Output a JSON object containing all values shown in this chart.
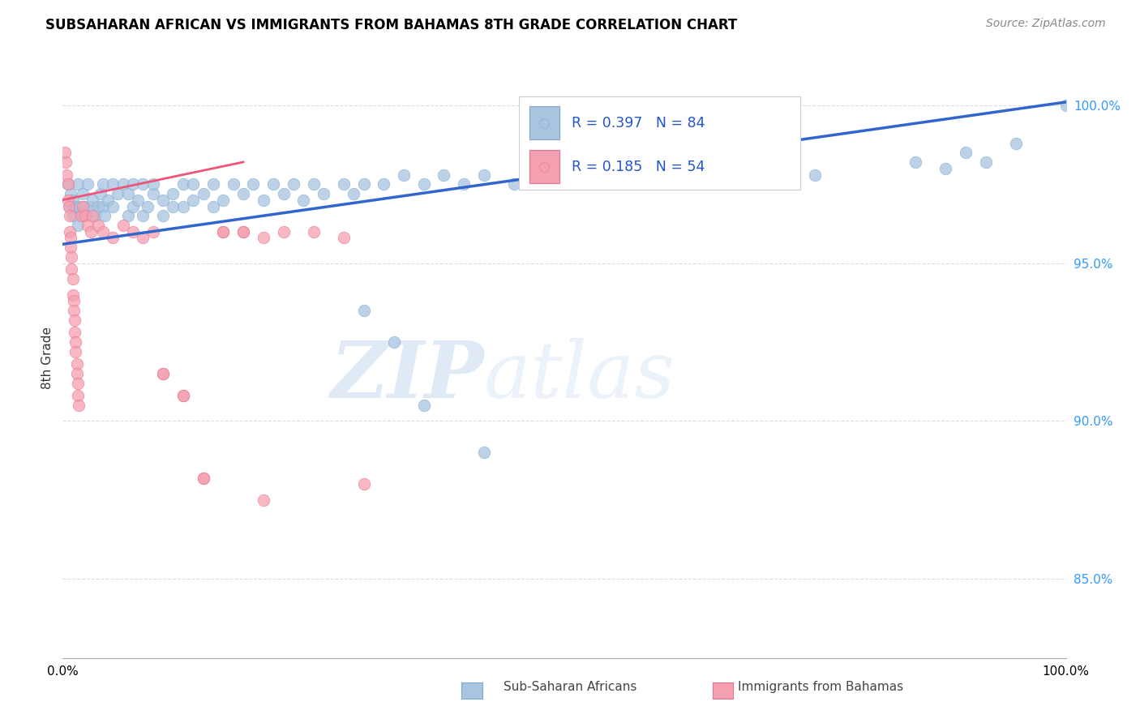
{
  "title": "SUBSAHARAN AFRICAN VS IMMIGRANTS FROM BAHAMAS 8TH GRADE CORRELATION CHART",
  "source": "Source: ZipAtlas.com",
  "ylabel": "8th Grade",
  "watermark_zip": "ZIP",
  "watermark_atlas": "atlas",
  "blue_R": 0.397,
  "blue_N": 84,
  "pink_R": 0.185,
  "pink_N": 54,
  "blue_color": "#a8c4e0",
  "blue_edge": "#7aaad0",
  "pink_color": "#f5a0b0",
  "pink_edge": "#e87090",
  "trend_blue": "#3366cc",
  "trend_pink": "#ee5577",
  "legend_label_blue": "Sub-Saharan Africans",
  "legend_label_pink": "Immigrants from Bahamas",
  "ytick_labels": [
    "85.0%",
    "90.0%",
    "95.0%",
    "100.0%"
  ],
  "ytick_values": [
    0.85,
    0.9,
    0.95,
    1.0
  ],
  "xlim": [
    0.0,
    1.0
  ],
  "ylim": [
    0.825,
    1.015
  ],
  "blue_x": [
    0.005,
    0.007,
    0.008,
    0.01,
    0.01,
    0.012,
    0.015,
    0.015,
    0.017,
    0.02,
    0.02,
    0.022,
    0.025,
    0.028,
    0.03,
    0.032,
    0.035,
    0.038,
    0.04,
    0.04,
    0.042,
    0.045,
    0.05,
    0.05,
    0.055,
    0.06,
    0.065,
    0.065,
    0.07,
    0.07,
    0.075,
    0.08,
    0.08,
    0.085,
    0.09,
    0.09,
    0.1,
    0.1,
    0.11,
    0.11,
    0.12,
    0.12,
    0.13,
    0.13,
    0.14,
    0.15,
    0.15,
    0.16,
    0.17,
    0.18,
    0.19,
    0.2,
    0.21,
    0.22,
    0.23,
    0.24,
    0.25,
    0.26,
    0.28,
    0.29,
    0.3,
    0.32,
    0.34,
    0.36,
    0.38,
    0.4,
    0.42,
    0.45,
    0.48,
    0.5,
    0.62,
    0.68,
    0.72,
    0.75,
    0.85,
    0.88,
    0.9,
    0.92,
    0.95,
    1.0,
    0.3,
    0.33,
    0.36,
    0.42
  ],
  "blue_y": [
    0.975,
    0.968,
    0.972,
    0.965,
    0.97,
    0.968,
    0.962,
    0.975,
    0.968,
    0.965,
    0.972,
    0.968,
    0.975,
    0.968,
    0.97,
    0.965,
    0.968,
    0.972,
    0.975,
    0.968,
    0.965,
    0.97,
    0.975,
    0.968,
    0.972,
    0.975,
    0.965,
    0.972,
    0.975,
    0.968,
    0.97,
    0.975,
    0.965,
    0.968,
    0.972,
    0.975,
    0.965,
    0.97,
    0.972,
    0.968,
    0.975,
    0.968,
    0.975,
    0.97,
    0.972,
    0.975,
    0.968,
    0.97,
    0.975,
    0.972,
    0.975,
    0.97,
    0.975,
    0.972,
    0.975,
    0.97,
    0.975,
    0.972,
    0.975,
    0.972,
    0.975,
    0.975,
    0.978,
    0.975,
    0.978,
    0.975,
    0.978,
    0.975,
    0.978,
    0.975,
    0.978,
    0.975,
    0.98,
    0.978,
    0.982,
    0.98,
    0.985,
    0.982,
    0.988,
    1.0,
    0.935,
    0.925,
    0.905,
    0.89
  ],
  "pink_x": [
    0.002,
    0.003,
    0.004,
    0.005,
    0.005,
    0.006,
    0.007,
    0.007,
    0.008,
    0.008,
    0.009,
    0.009,
    0.01,
    0.01,
    0.011,
    0.011,
    0.012,
    0.012,
    0.013,
    0.013,
    0.014,
    0.014,
    0.015,
    0.015,
    0.016,
    0.018,
    0.02,
    0.022,
    0.025,
    0.028,
    0.03,
    0.035,
    0.04,
    0.05,
    0.06,
    0.07,
    0.08,
    0.09,
    0.1,
    0.12,
    0.14,
    0.16,
    0.18,
    0.2,
    0.22,
    0.25,
    0.28,
    0.3,
    0.1,
    0.12,
    0.14,
    0.16,
    0.18,
    0.2
  ],
  "pink_y": [
    0.985,
    0.982,
    0.978,
    0.975,
    0.97,
    0.968,
    0.965,
    0.96,
    0.958,
    0.955,
    0.952,
    0.948,
    0.945,
    0.94,
    0.938,
    0.935,
    0.932,
    0.928,
    0.925,
    0.922,
    0.918,
    0.915,
    0.912,
    0.908,
    0.905,
    0.965,
    0.968,
    0.965,
    0.962,
    0.96,
    0.965,
    0.962,
    0.96,
    0.958,
    0.962,
    0.96,
    0.958,
    0.96,
    0.915,
    0.908,
    0.882,
    0.96,
    0.96,
    0.875,
    0.96,
    0.96,
    0.958,
    0.88,
    0.915,
    0.908,
    0.882,
    0.96,
    0.96,
    0.958
  ],
  "trend_blue_x0": 0.0,
  "trend_blue_y0": 0.956,
  "trend_blue_x1": 1.0,
  "trend_blue_y1": 1.001,
  "trend_pink_x0": 0.0,
  "trend_pink_y0": 0.97,
  "trend_pink_x1": 0.18,
  "trend_pink_y1": 0.982
}
